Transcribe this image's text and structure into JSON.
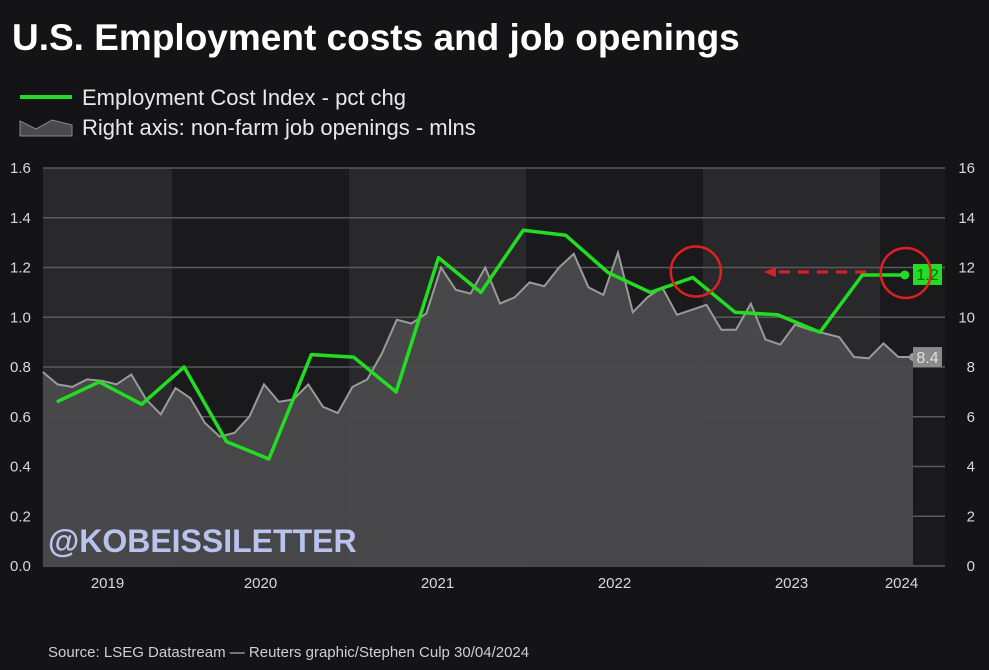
{
  "chart_data": {
    "type": "line",
    "title": "U.S. Employment costs and job openings",
    "legend": [
      {
        "label": "Employment Cost Index - pct chg",
        "color": "#22dd22",
        "style": "line"
      },
      {
        "label": "Right axis: non-farm job openings - mlns",
        "color": "#4a4a4c",
        "style": "area"
      }
    ],
    "legend_placement": "top-left",
    "grid": true,
    "left_axis": {
      "range": [
        0,
        1.6
      ],
      "ticks": [
        "0.0",
        "0.2",
        "0.4",
        "0.6",
        "0.8",
        "1.0",
        "1.2",
        "1.4",
        "1.6"
      ]
    },
    "right_axis": {
      "range": [
        0,
        16
      ],
      "ticks": [
        "0",
        "2",
        "4",
        "6",
        "8",
        "10",
        "12",
        "14",
        "16"
      ]
    },
    "x_ticks": [
      "2019",
      "2020",
      "2021",
      "2022",
      "2023",
      "2024"
    ],
    "series": [
      {
        "name": "Employment Cost Index - pct chg",
        "axis": "left",
        "color": "#22dd22",
        "x": [
          "2019 Q1",
          "2019 Q2",
          "2019 Q3",
          "2019 Q4",
          "2020 Q1",
          "2020 Q2",
          "2020 Q3",
          "2020 Q4",
          "2021 Q1",
          "2021 Q2",
          "2021 Q3",
          "2021 Q4",
          "2022 Q1",
          "2022 Q2",
          "2022 Q3",
          "2022 Q4",
          "2023 Q1",
          "2023 Q2",
          "2023 Q3",
          "2023 Q4",
          "2024 Q1"
        ],
        "values": [
          0.66,
          0.74,
          0.65,
          0.8,
          0.5,
          0.43,
          0.85,
          0.84,
          0.7,
          1.24,
          1.1,
          1.35,
          1.33,
          1.18,
          1.1,
          1.16,
          1.02,
          1.01,
          0.94,
          1.17,
          1.2
        ]
      },
      {
        "name": "Right axis: non-farm job openings - mlns",
        "axis": "right",
        "color": "#4a4a4c",
        "x": [
          "2019-04",
          "2019-05",
          "2019-06",
          "2019-07",
          "2019-08",
          "2019-09",
          "2019-10",
          "2019-11",
          "2019-12",
          "2020-01",
          "2020-02",
          "2020-03",
          "2020-04",
          "2020-05",
          "2020-06",
          "2020-07",
          "2020-08",
          "2020-09",
          "2020-10",
          "2020-11",
          "2020-12",
          "2021-01",
          "2021-02",
          "2021-03",
          "2021-04",
          "2021-05",
          "2021-06",
          "2021-07",
          "2021-08",
          "2021-09",
          "2021-10",
          "2021-11",
          "2021-12",
          "2022-01",
          "2022-02",
          "2022-03",
          "2022-04",
          "2022-05",
          "2022-06",
          "2022-07",
          "2022-08",
          "2022-09",
          "2022-10",
          "2022-11",
          "2022-12",
          "2023-01",
          "2023-02",
          "2023-03",
          "2023-04",
          "2023-05",
          "2023-06",
          "2023-07",
          "2023-08",
          "2023-09",
          "2023-10",
          "2023-11",
          "2023-12",
          "2024-01",
          "2024-02",
          "2024-03"
        ],
        "values": [
          7.8,
          7.3,
          7.2,
          7.5,
          7.45,
          7.3,
          7.7,
          6.7,
          6.1,
          7.15,
          6.75,
          5.75,
          5.2,
          5.35,
          6.0,
          7.3,
          6.6,
          6.7,
          7.3,
          6.4,
          6.15,
          7.2,
          7.5,
          8.55,
          9.9,
          9.75,
          10.15,
          12.0,
          11.1,
          10.95,
          12.0,
          10.55,
          10.8,
          11.4,
          11.25,
          12.0,
          12.55,
          11.2,
          10.9,
          12.6,
          10.2,
          10.8,
          11.2,
          10.1,
          10.3,
          10.5,
          9.5,
          9.5,
          10.55,
          9.1,
          8.9,
          9.7,
          9.5,
          9.35,
          9.2,
          8.4,
          8.35,
          8.95,
          8.4,
          8.4
        ]
      }
    ],
    "value_labels": {
      "eci_last": "1.2",
      "openings_last": "8.4"
    },
    "annotations": "Red circles on ECI at 2022 Q3 and 2024 Q1 joined by dashed red arrow pointing left",
    "annotation_color": "#e02020",
    "watermark": "@KOBEISSILETTER",
    "source": "Source: LSEG Datastream — Reuters graphic/Stephen Culp 30/04/2024"
  }
}
